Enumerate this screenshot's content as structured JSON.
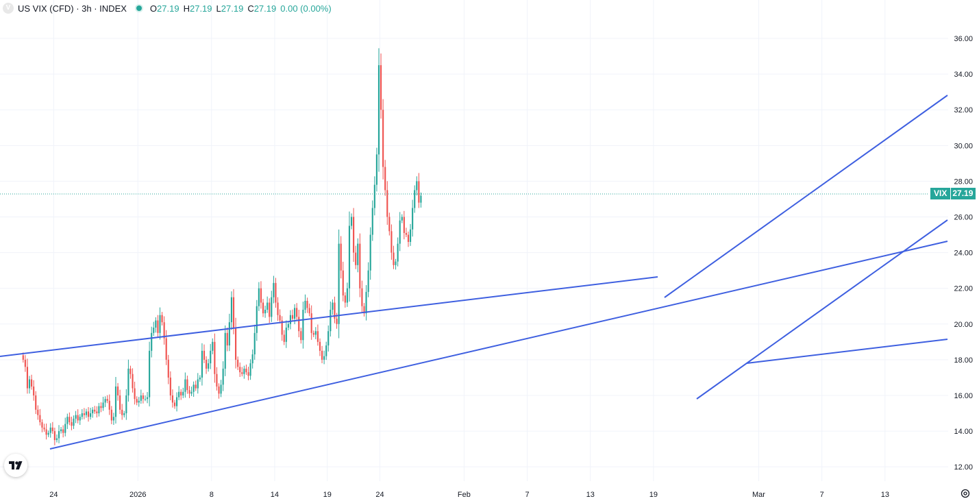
{
  "legend": {
    "title": "US VIX (CFD) · 3h · INDEX",
    "o_label": "O",
    "o_value": "27.19",
    "h_label": "H",
    "h_value": "27.19",
    "l_label": "L",
    "l_value": "27.19",
    "c_label": "C",
    "c_value": "27.19",
    "change": "0.00 (0.00%)"
  },
  "price_badge": {
    "symbol": "VIX",
    "value": "27.19"
  },
  "colors": {
    "up": "#26a69a",
    "down": "#ef5350",
    "trendline": "#3e5fe0",
    "grid": "#f0f3fa",
    "text": "#131722",
    "axis_text": "#131722"
  },
  "icons": {
    "logo": "tradingview-logo-icon",
    "settings": "gear-icon",
    "symbol": "vix-symbol-icon"
  },
  "chart_data": {
    "type": "candlestick",
    "title": "US VIX (CFD) · 3h · INDEX",
    "ylim": [
      11.2,
      37
    ],
    "y_ticks": [
      "12.00",
      "14.00",
      "16.00",
      "18.00",
      "20.00",
      "22.00",
      "24.00",
      "26.00",
      "28.00",
      "30.00",
      "32.00",
      "34.00",
      "36.00"
    ],
    "x_ticks": [
      {
        "label": "24",
        "day": 3
      },
      {
        "label": "2026",
        "day": 11
      },
      {
        "label": "8",
        "day": 18
      },
      {
        "label": "14",
        "day": 24
      },
      {
        "label": "19",
        "day": 29
      },
      {
        "label": "24",
        "day": 34
      },
      {
        "label": "Feb",
        "day": 42
      },
      {
        "label": "7",
        "day": 48
      },
      {
        "label": "13",
        "day": 54
      },
      {
        "label": "19",
        "day": 60
      },
      {
        "label": "Mar",
        "day": 70
      },
      {
        "label": "7",
        "day": 76
      },
      {
        "label": "13",
        "day": 82
      }
    ],
    "x_domain": [
      -2.1,
      88.0
    ],
    "last_price": 27.19,
    "grid": true,
    "candles_per_day": 5,
    "series": [
      {
        "name": "VIX",
        "closes": [
          18.0,
          17.6,
          16.4,
          16.9,
          16.5,
          16.0,
          15.2,
          14.9,
          14.5,
          14.2,
          14.1,
          13.8,
          13.9,
          14.2,
          14.0,
          13.5,
          13.6,
          14.0,
          14.1,
          13.9,
          14.4,
          14.8,
          14.5,
          14.3,
          14.7,
          14.9,
          14.6,
          14.8,
          15.0,
          14.9,
          15.1,
          14.8,
          15.0,
          15.2,
          15.1,
          15.0,
          15.4,
          15.3,
          15.6,
          15.8,
          15.7,
          15.2,
          14.6,
          14.8,
          16.5,
          16.0,
          15.2,
          14.9,
          15.0,
          16.0,
          17.5,
          17.2,
          16.4,
          15.8,
          15.6,
          15.7,
          16.0,
          15.8,
          15.8,
          15.9,
          18.5,
          19.5,
          19.8,
          20.2,
          19.5,
          20.5,
          20.1,
          19.2,
          18.0,
          17.0,
          16.0,
          15.6,
          15.4,
          15.9,
          16.2,
          16.0,
          16.2,
          16.9,
          16.3,
          16.1,
          16.2,
          16.6,
          16.4,
          16.9,
          17.0,
          18.5,
          18.0,
          17.5,
          17.8,
          18.5,
          19.0,
          17.2,
          16.5,
          16.1,
          16.6,
          17.5,
          19.5,
          18.8,
          20.1,
          21.5,
          19.8,
          18.0,
          17.6,
          17.3,
          17.2,
          17.5,
          17.3,
          17.1,
          17.8,
          18.3,
          19.5,
          21.0,
          22.0,
          21.2,
          20.6,
          20.8,
          21.2,
          20.4,
          21.5,
          22.3,
          21.2,
          20.5,
          20.2,
          19.4,
          19.0,
          19.8,
          20.0,
          20.5,
          20.3,
          20.9,
          20.4,
          19.6,
          19.1,
          20.8,
          21.3,
          20.9,
          20.6,
          19.5,
          19.4,
          19.6,
          19.0,
          18.5,
          18.0,
          18.2,
          18.8,
          19.6,
          20.8,
          21.2,
          20.3,
          20.0,
          24.5,
          23.0,
          21.6,
          21.2,
          22.0,
          25.5,
          26.0,
          24.0,
          23.3,
          24.5,
          22.0,
          21.0,
          20.6,
          21.8,
          23.0,
          25.0,
          26.5,
          27.8,
          29.5,
          34.5,
          32.0,
          28.8,
          27.5,
          26.0,
          25.2,
          24.0,
          23.3,
          23.5,
          24.5,
          25.8,
          26.0,
          25.1,
          25.0,
          24.6,
          25.3,
          26.5,
          27.5,
          28.0,
          26.8,
          27.19
        ]
      }
    ]
  }
}
